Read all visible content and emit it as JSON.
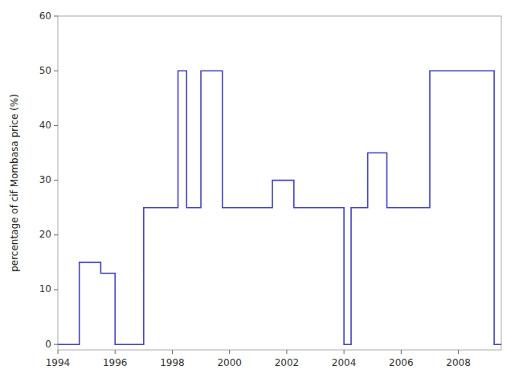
{
  "chart_data": {
    "type": "line",
    "ylabel": "percentage of cif Mombasa price (%)",
    "x": [
      1994,
      1994.75,
      1994.75,
      1995.5,
      1995.5,
      1996.0,
      1996.0,
      1997.0,
      1997.0,
      1998.2,
      1998.2,
      1998.5,
      1998.5,
      1999.0,
      1999.0,
      1999.75,
      1999.75,
      2001.5,
      2001.5,
      2002.25,
      2002.25,
      2002.75,
      2002.75,
      2004.0,
      2004.0,
      2004.25,
      2004.25,
      2004.83,
      2004.83,
      2005.5,
      2005.5,
      2007.0,
      2007.0,
      2009.25,
      2009.25,
      2009.5
    ],
    "values": [
      0,
      0,
      15,
      15,
      13,
      13,
      0,
      0,
      25,
      25,
      50,
      50,
      25,
      25,
      50,
      50,
      25,
      25,
      30,
      30,
      25,
      25,
      25,
      25,
      0,
      0,
      25,
      25,
      35,
      35,
      25,
      25,
      50,
      50,
      0,
      0
    ],
    "color": "#4444bb",
    "xlim": [
      1994,
      2009.5
    ],
    "ylim": [
      -1,
      60
    ],
    "xticks": [
      1994,
      1996,
      1998,
      2000,
      2002,
      2004,
      2006,
      2008
    ],
    "yticks": [
      0,
      10,
      20,
      30,
      40,
      50,
      60
    ],
    "grid": false
  }
}
